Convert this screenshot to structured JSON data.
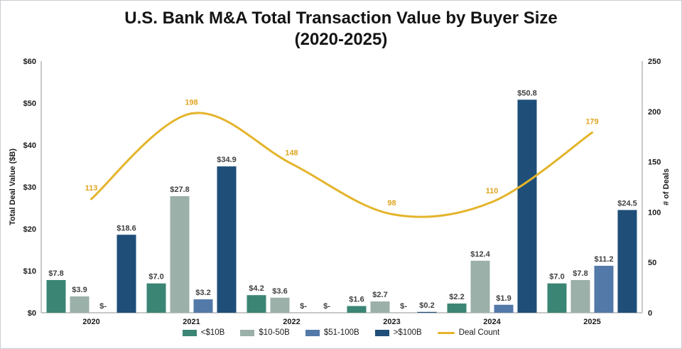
{
  "title_line1": "U.S. Bank M&A Total Transaction Value by Buyer Size",
  "title_line2": "(2020-2025)",
  "chart_data": {
    "type": "bar+line combo",
    "categories": [
      "2020",
      "2021",
      "2022",
      "2023",
      "2024",
      "2025"
    ],
    "bar_series": [
      {
        "name": "<$10B",
        "color": "#3B8575",
        "values": [
          7.8,
          7.0,
          4.2,
          1.6,
          2.2,
          7.0
        ],
        "labels": [
          "$7.8",
          "$7.0",
          "$4.2",
          "$1.6",
          "$2.2",
          "$7.0"
        ]
      },
      {
        "name": "$10-50B",
        "color": "#9BB0A8",
        "values": [
          3.9,
          27.8,
          3.6,
          2.7,
          12.4,
          7.8
        ],
        "labels": [
          "$3.9",
          "$27.8",
          "$3.6",
          "$2.7",
          "$12.4",
          "$7.8"
        ]
      },
      {
        "name": "$51-100B",
        "color": "#5379A9",
        "values": [
          0,
          3.2,
          0,
          0,
          1.9,
          11.2
        ],
        "labels": [
          "$-",
          "$3.2",
          "$-",
          "$-",
          "$1.9",
          "$11.2"
        ]
      },
      {
        "name": ">$100B",
        "color": "#1F4E79",
        "values": [
          18.6,
          34.9,
          0,
          0.2,
          50.8,
          24.5
        ],
        "labels": [
          "$18.6",
          "$34.9",
          "$-",
          "$0.2",
          "$50.8",
          "$24.5"
        ]
      }
    ],
    "line_series": {
      "name": "Deal Count",
      "color": "#E4B42B",
      "values": [
        113,
        198,
        148,
        98,
        110,
        179
      ],
      "labels": [
        "113",
        "198",
        "148",
        "98",
        "110",
        "179"
      ]
    },
    "left_axis": {
      "title": "Total Deal Value ($B)",
      "min": 0,
      "max": 60,
      "step": 10,
      "tick_labels": [
        "$0",
        "$10",
        "$20",
        "$30",
        "$40",
        "$50",
        "$60"
      ]
    },
    "right_axis": {
      "title": "# of Deals",
      "min": 0,
      "max": 250,
      "step": 50,
      "tick_labels": [
        "0",
        "50",
        "100",
        "150",
        "200",
        "250"
      ]
    },
    "legend_position": "bottom",
    "grid": false,
    "style": {
      "bar_label_color": "#404040",
      "line_label_color": "#DFA51E",
      "axis_line_color": "#A6A6A6",
      "tick_label_color": "#1a1a1a"
    }
  }
}
